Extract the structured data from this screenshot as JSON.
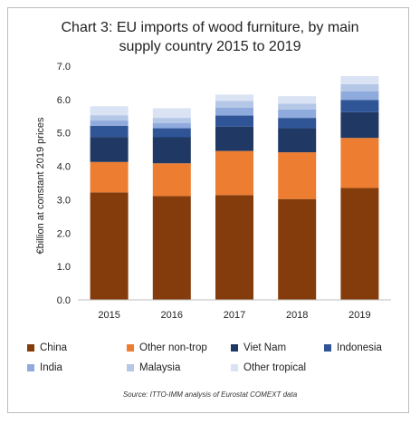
{
  "chart_data": {
    "type": "bar",
    "stacked": true,
    "title": "Chart 3: EU imports of wood furniture, by main supply country 2015 to 2019",
    "title_lines": [
      "Chart 3: EU imports of wood furniture, by main",
      "supply country 2015 to 2019"
    ],
    "ylabel": "€billion at constant 2019 prices",
    "xlabel": "",
    "ylim": [
      0,
      7
    ],
    "yticks": [
      "0.0",
      "1.0",
      "2.0",
      "3.0",
      "4.0",
      "5.0",
      "6.0",
      "7.0"
    ],
    "categories": [
      "2015",
      "2016",
      "2017",
      "2018",
      "2019"
    ],
    "legend_position": "bottom",
    "grid": false,
    "series": [
      {
        "name": "China",
        "color": "#843c0c",
        "values": [
          3.22,
          3.11,
          3.14,
          3.02,
          3.35
        ]
      },
      {
        "name": "Other non-trop",
        "color": "#ed7d31",
        "values": [
          0.91,
          0.98,
          1.32,
          1.4,
          1.5
        ]
      },
      {
        "name": "Viet Nam",
        "color": "#203864",
        "values": [
          0.75,
          0.78,
          0.73,
          0.72,
          0.77
        ]
      },
      {
        "name": "Indonesia",
        "color": "#2f5597",
        "values": [
          0.33,
          0.27,
          0.33,
          0.31,
          0.37
        ]
      },
      {
        "name": "India",
        "color": "#8faadc",
        "values": [
          0.16,
          0.15,
          0.24,
          0.25,
          0.25
        ]
      },
      {
        "name": "Malaysia",
        "color": "#b4c7e7",
        "values": [
          0.16,
          0.16,
          0.2,
          0.18,
          0.22
        ]
      },
      {
        "name": "Other tropical",
        "color": "#dae3f3",
        "values": [
          0.27,
          0.29,
          0.19,
          0.22,
          0.24
        ]
      }
    ]
  },
  "source": "Source: ITTO-IMM analysis of Eurostat COMEXT data"
}
